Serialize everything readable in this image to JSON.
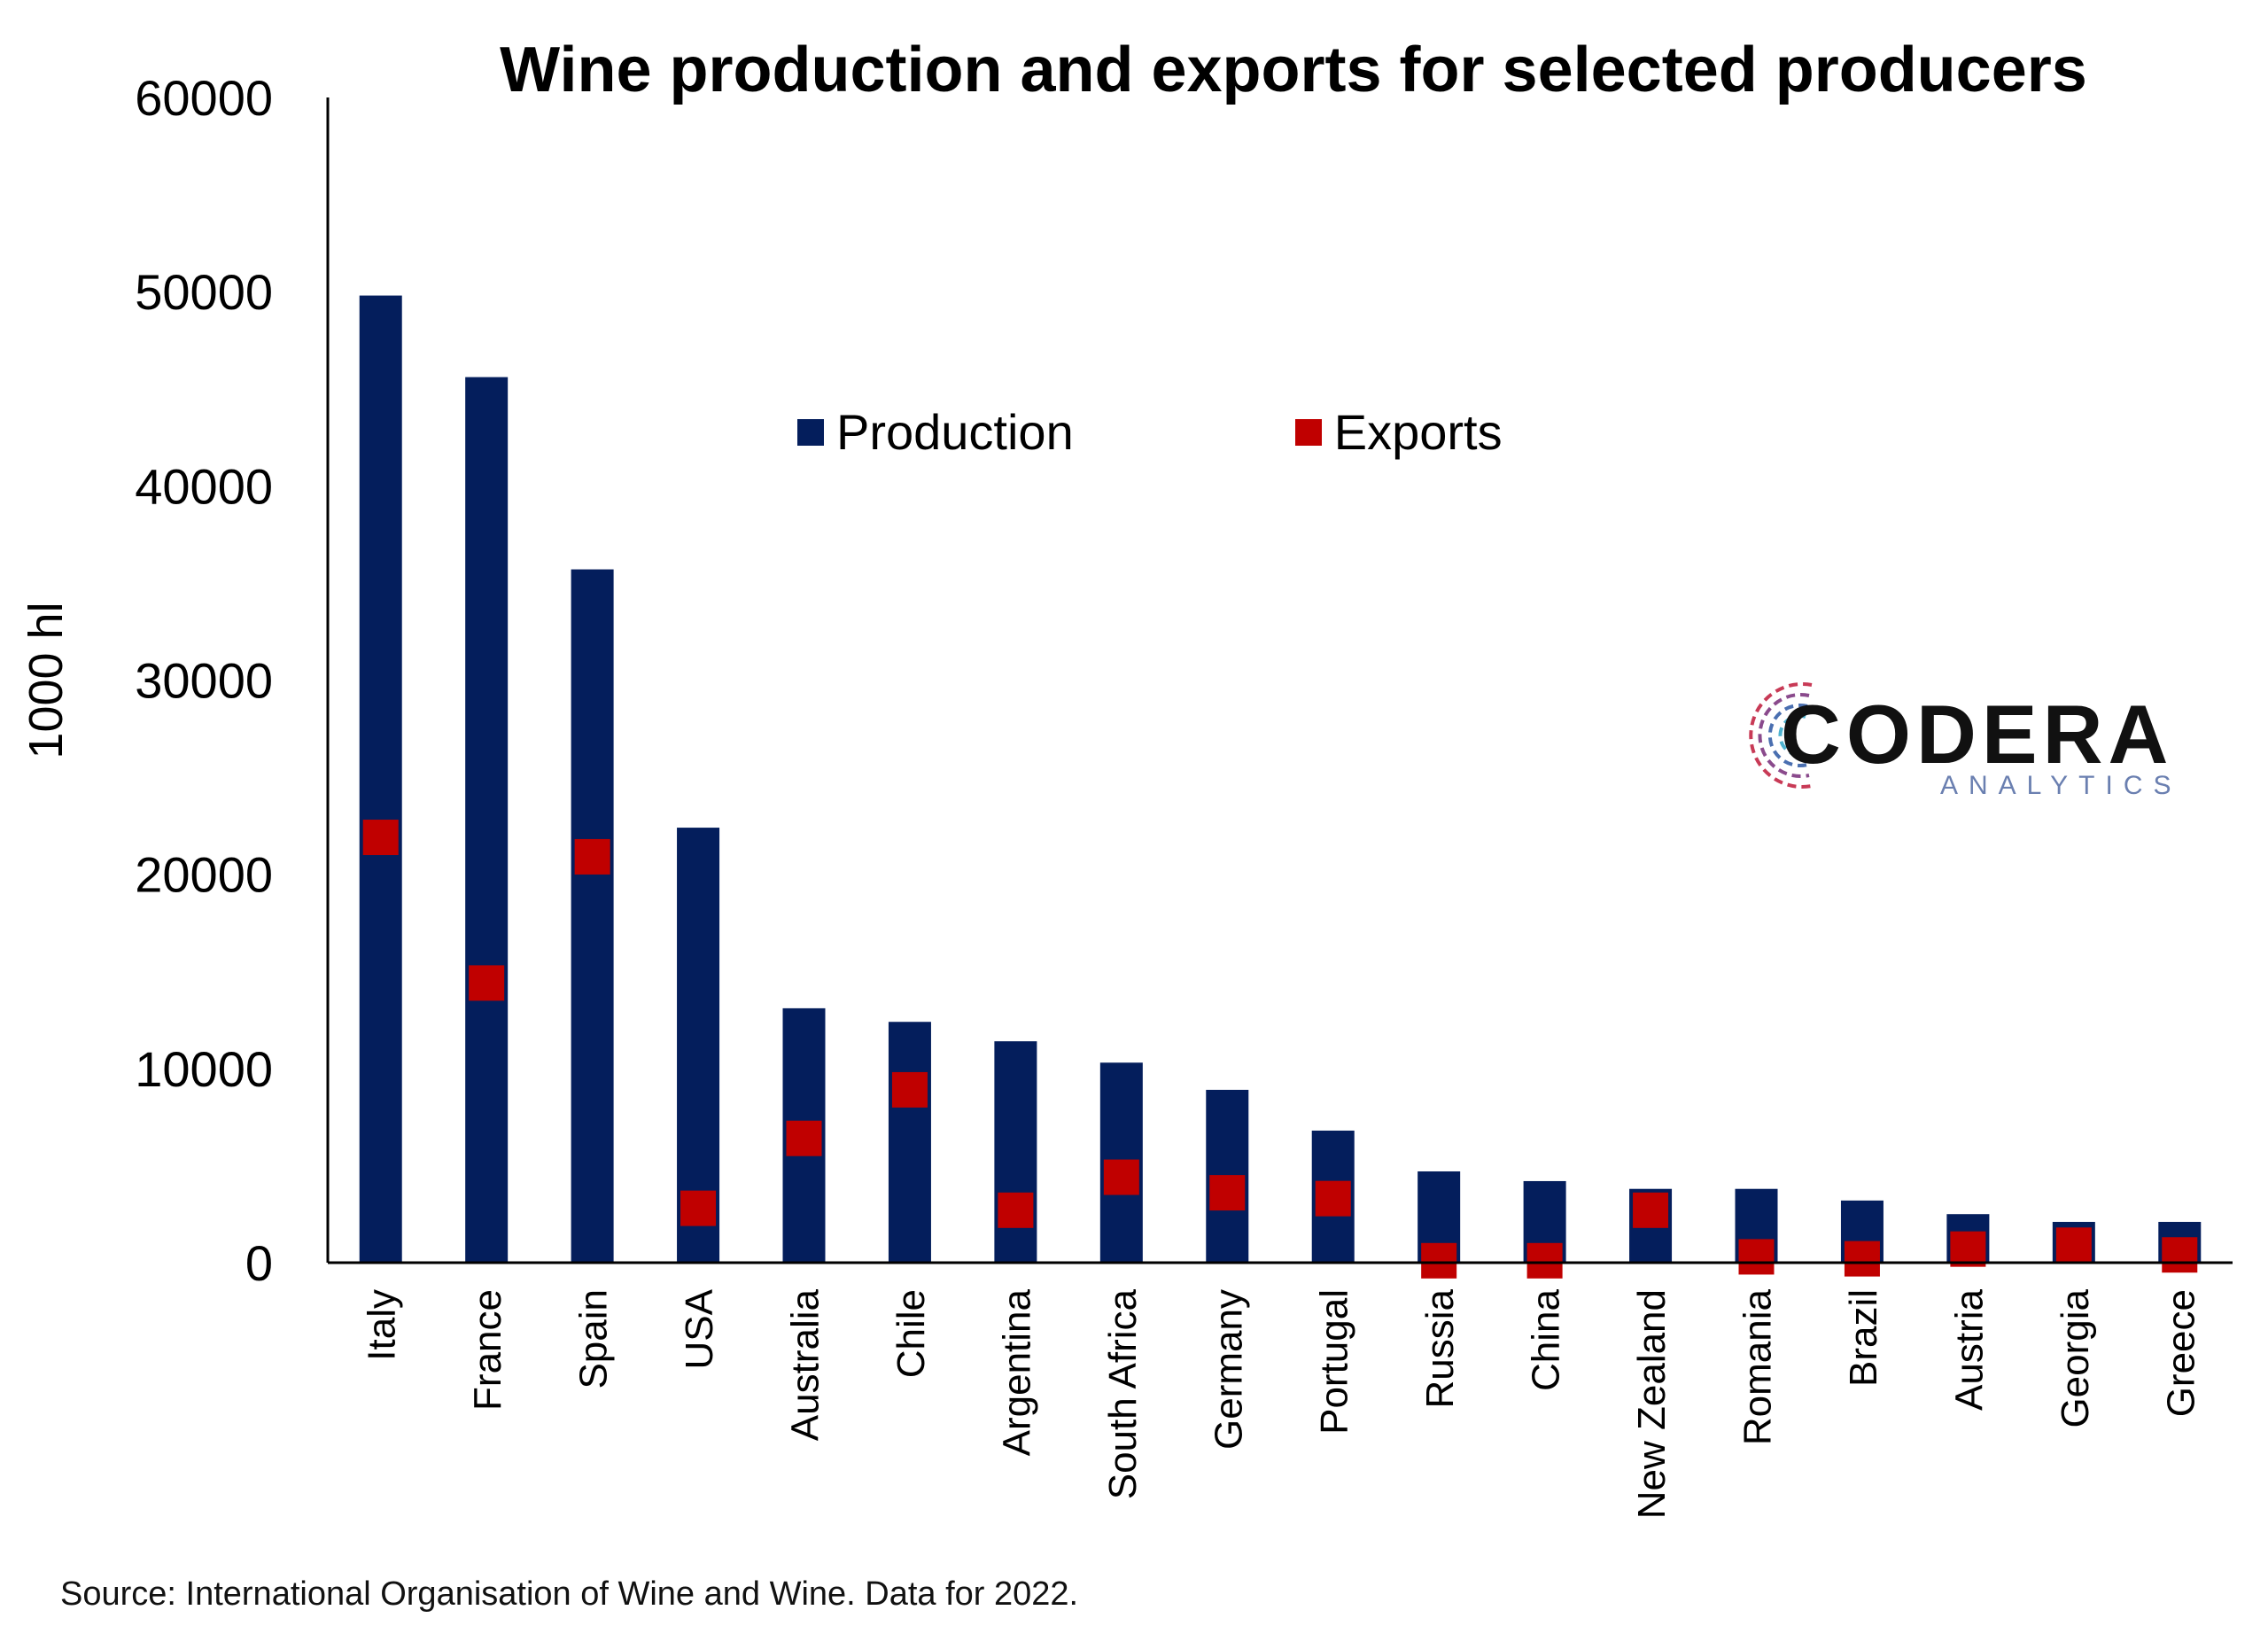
{
  "chart_data": {
    "type": "bar",
    "title": "Wine production and exports for selected producers",
    "ylabel": "1000 hl",
    "xlabel": "",
    "ylim": [
      0,
      60000
    ],
    "yticks": [
      0,
      10000,
      20000,
      30000,
      40000,
      50000,
      60000
    ],
    "categories": [
      "Italy",
      "France",
      "Spain",
      "USA",
      "Australia",
      "Chile",
      "Argentina",
      "South Africa",
      "Germany",
      "Portugal",
      "Russia",
      "China",
      "New Zealand",
      "Romania",
      "Brazil",
      "Austria",
      "Georgia",
      "Greece"
    ],
    "series": [
      {
        "name": "Production",
        "kind": "bar",
        "color": "#041e5c",
        "values": [
          49800,
          45600,
          35700,
          22400,
          13100,
          12400,
          11400,
          10300,
          8900,
          6800,
          4700,
          4200,
          3800,
          3800,
          3200,
          2500,
          2100,
          2100
        ]
      },
      {
        "name": "Exports",
        "kind": "marker",
        "color": "#c00000",
        "values": [
          21900,
          14400,
          20900,
          2800,
          6400,
          8900,
          2700,
          4400,
          3600,
          3300,
          100,
          100,
          2700,
          300,
          200,
          700,
          900,
          400
        ]
      }
    ],
    "legend_position": "top-center",
    "grid": false
  },
  "logo": {
    "name": "CODERA",
    "tagline": "ANALYTICS"
  },
  "source_note": "Source: International Organisation of Wine and Wine. Data for 2022."
}
